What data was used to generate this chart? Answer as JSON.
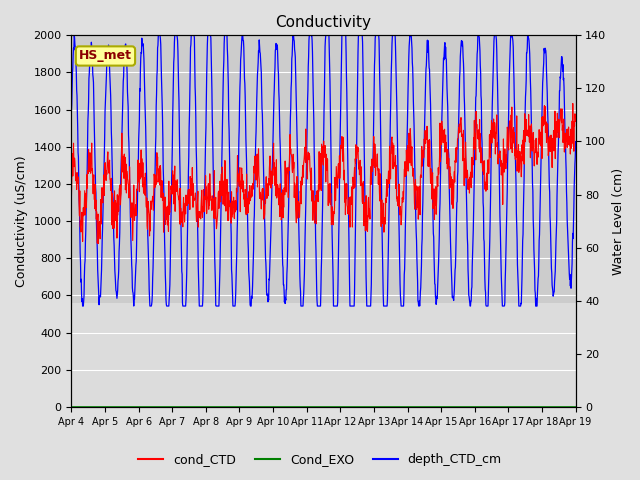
{
  "title": "Conductivity",
  "ylabel_left": "Conductivity (uS/cm)",
  "ylabel_right": "Water Level (cm)",
  "left_ylim": [
    0,
    2000
  ],
  "right_ylim": [
    0,
    140
  ],
  "left_yticks": [
    0,
    200,
    400,
    600,
    800,
    1000,
    1200,
    1400,
    1600,
    1800,
    2000
  ],
  "right_yticks": [
    0,
    20,
    40,
    60,
    80,
    100,
    120,
    140
  ],
  "annotation_text": "HS_met",
  "annotation_bbox_fc": "#FFFF99",
  "annotation_bbox_ec": "#AAAA00",
  "fig_bg_color": "#E0E0E0",
  "plot_bg_upper": "#CCCCCC",
  "plot_bg_lower": "#DCDCDC",
  "line_color_cond": "red",
  "line_color_exo": "green",
  "line_color_depth": "blue",
  "grid_color": "#FFFFFF",
  "xtick_labels": [
    "Apr 4",
    "Apr 5",
    "Apr 6",
    "Apr 7",
    "Apr 8",
    "Apr 9",
    "Apr 10",
    "Apr 11",
    "Apr 12",
    "Apr 13",
    "Apr 14",
    "Apr 15",
    "Apr 16",
    "Apr 17",
    "Apr 18",
    "Apr 19"
  ],
  "xtick_positions": [
    0,
    1,
    2,
    3,
    4,
    5,
    6,
    7,
    8,
    9,
    10,
    11,
    12,
    13,
    14,
    15
  ],
  "title_fontsize": 11,
  "axis_fontsize": 9,
  "tick_fontsize": 8
}
